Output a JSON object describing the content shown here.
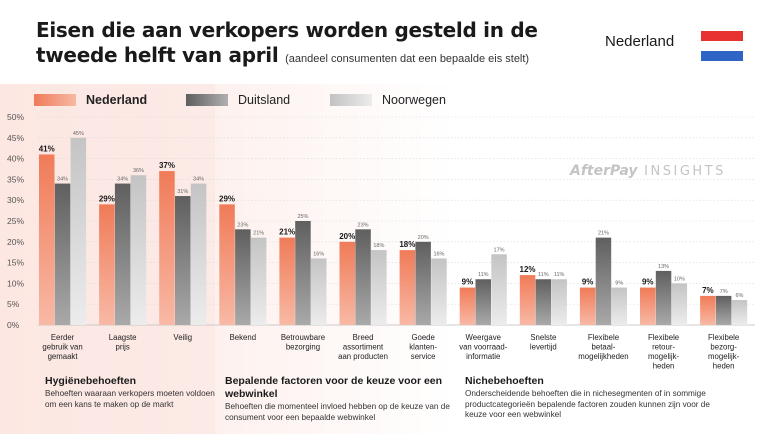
{
  "header": {
    "title": "Eisen die aan verkopers worden gesteld in de tweede helft van april",
    "subtitle": "(aandeel consumenten dat een bepaalde eis stelt)",
    "country": "Nederland"
  },
  "watermark": {
    "brand": "AfterPay",
    "suffix": "INSIGHTS"
  },
  "colors": {
    "nederland": "#f28b6a",
    "duitsland": "#7d7d7d",
    "noorwegen": "#d6d6d6",
    "flag_red": "#e8322f",
    "flag_white": "#ffffff",
    "flag_blue": "#2f63c4"
  },
  "chart_data": {
    "type": "bar",
    "categories": [
      "Eerder gebruik van gemaakt",
      "Laagste prijs",
      "Veilig",
      "Bekend",
      "Betrouwbare bezorging",
      "Breed assortiment aan producten",
      "Goede klanten-service",
      "Weergave van voorraad-informatie",
      "Snelste levertijd",
      "Flexibele betaal-mogelijkheden",
      "Flexibele retour-mogelijk-heden",
      "Flexibele bezorg-mogelijk-heden"
    ],
    "category_lines": [
      [
        "Eerder",
        "gebruik van",
        "gemaakt"
      ],
      [
        "Laagste",
        "prijs"
      ],
      [
        "Veilig"
      ],
      [
        "Bekend"
      ],
      [
        "Betrouwbare",
        "bezorging"
      ],
      [
        "Breed",
        "assortiment",
        "aan producten"
      ],
      [
        "Goede",
        "klanten-",
        "service"
      ],
      [
        "Weergave",
        "van voorraad-",
        "informatie"
      ],
      [
        "Snelste",
        "levertijd"
      ],
      [
        "Flexibele",
        "betaal-",
        "mogelijkheden"
      ],
      [
        "Flexibele",
        "retour-",
        "mogelijk-",
        "heden"
      ],
      [
        "Flexibele",
        "bezorg-",
        "mogelijk-",
        "heden"
      ]
    ],
    "series": [
      {
        "name": "Nederland",
        "values": [
          41,
          29,
          37,
          29,
          21,
          20,
          18,
          9,
          12,
          9,
          9,
          7
        ]
      },
      {
        "name": "Duitsland",
        "values": [
          34,
          34,
          31,
          23,
          25,
          23,
          20,
          11,
          11,
          21,
          13,
          7
        ]
      },
      {
        "name": "Noorwegen",
        "values": [
          45,
          36,
          34,
          21,
          16,
          18,
          16,
          17,
          11,
          9,
          10,
          6
        ]
      }
    ],
    "value_labels": [
      [
        "41%",
        "29%",
        "37%",
        "29%",
        "21%",
        "20%",
        "18%",
        "9%",
        "12%",
        "9%",
        "9%",
        "7%"
      ],
      [
        "34%",
        "34%",
        "31%",
        "23%",
        "25%",
        "23%",
        "20%",
        "11%",
        "11%",
        "21%",
        "13%",
        "7%"
      ],
      [
        "45%",
        "36%",
        "34%",
        "21%",
        "16%",
        "18%",
        "16%",
        "17%",
        "11%",
        "9%",
        "10%",
        "6%"
      ]
    ],
    "yticks": [
      0,
      5,
      10,
      15,
      20,
      25,
      30,
      35,
      40,
      45,
      50
    ],
    "ytick_labels": [
      "0%",
      "5%",
      "10%",
      "15%",
      "20%",
      "25%",
      "30%",
      "35%",
      "40%",
      "45%",
      "50%"
    ],
    "ylim": [
      0,
      50
    ],
    "grid": true,
    "legend": "top-left"
  },
  "groups": [
    {
      "title": "Hygiënebehoeften",
      "description": "Behoeften waaraan verkopers moeten voldoen om een kans te maken op de markt"
    },
    {
      "title": "Bepalende factoren voor de keuze voor een webwinkel",
      "description": "Behoeften die momenteel invloed hebben op de keuze van de consument voor een bepaalde webwinkel"
    },
    {
      "title": "Nichebehoeften",
      "description": "Onderscheidende behoeften die in nichesegmenten of in sommige productcategorieën bepalende factoren zouden kunnen zijn voor de keuze voor een webwinkel"
    }
  ]
}
